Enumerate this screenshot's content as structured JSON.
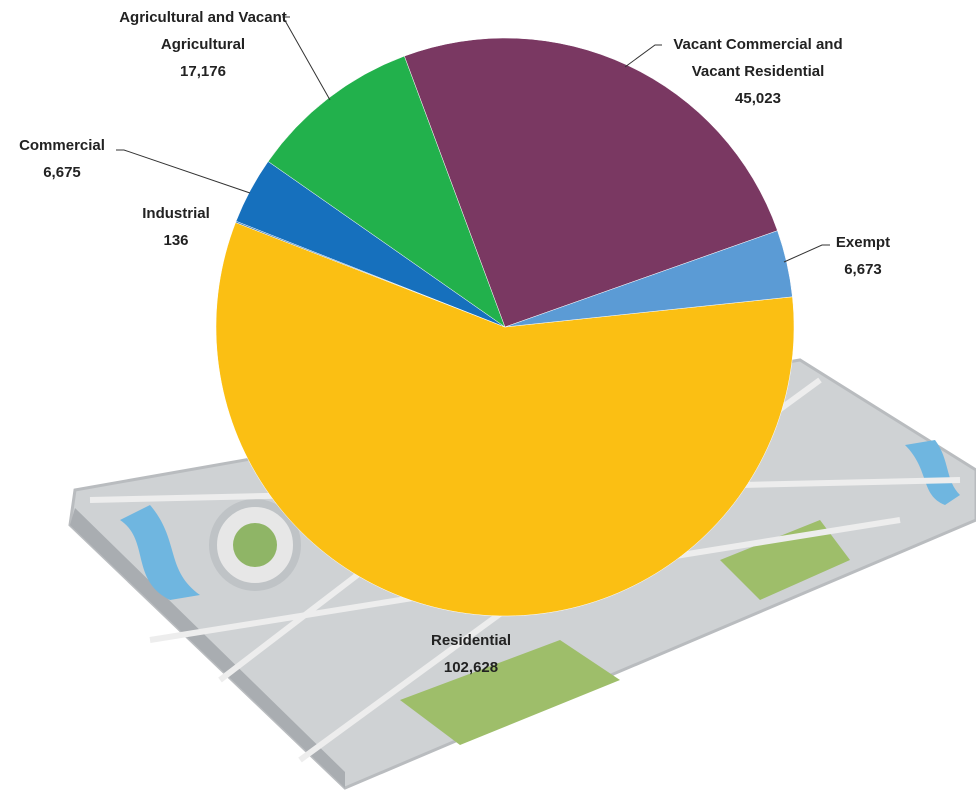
{
  "chart_data": {
    "type": "pie",
    "categories": [
      "Residential",
      "Industrial",
      "Commercial",
      "Agricultural and Vacant Agricultural",
      "Vacant Commercial and Vacant Residential",
      "Exempt"
    ],
    "values": [
      102628,
      136,
      6675,
      17176,
      45023,
      6673
    ],
    "value_labels": [
      "102,628",
      "136",
      "6,675",
      "17,176",
      "45,023",
      "6,673"
    ],
    "colors": [
      "#fbbf13",
      "#2e75b6",
      "#1670bd",
      "#22b14c",
      "#7a3862",
      "#5b9bd5"
    ]
  }
}
